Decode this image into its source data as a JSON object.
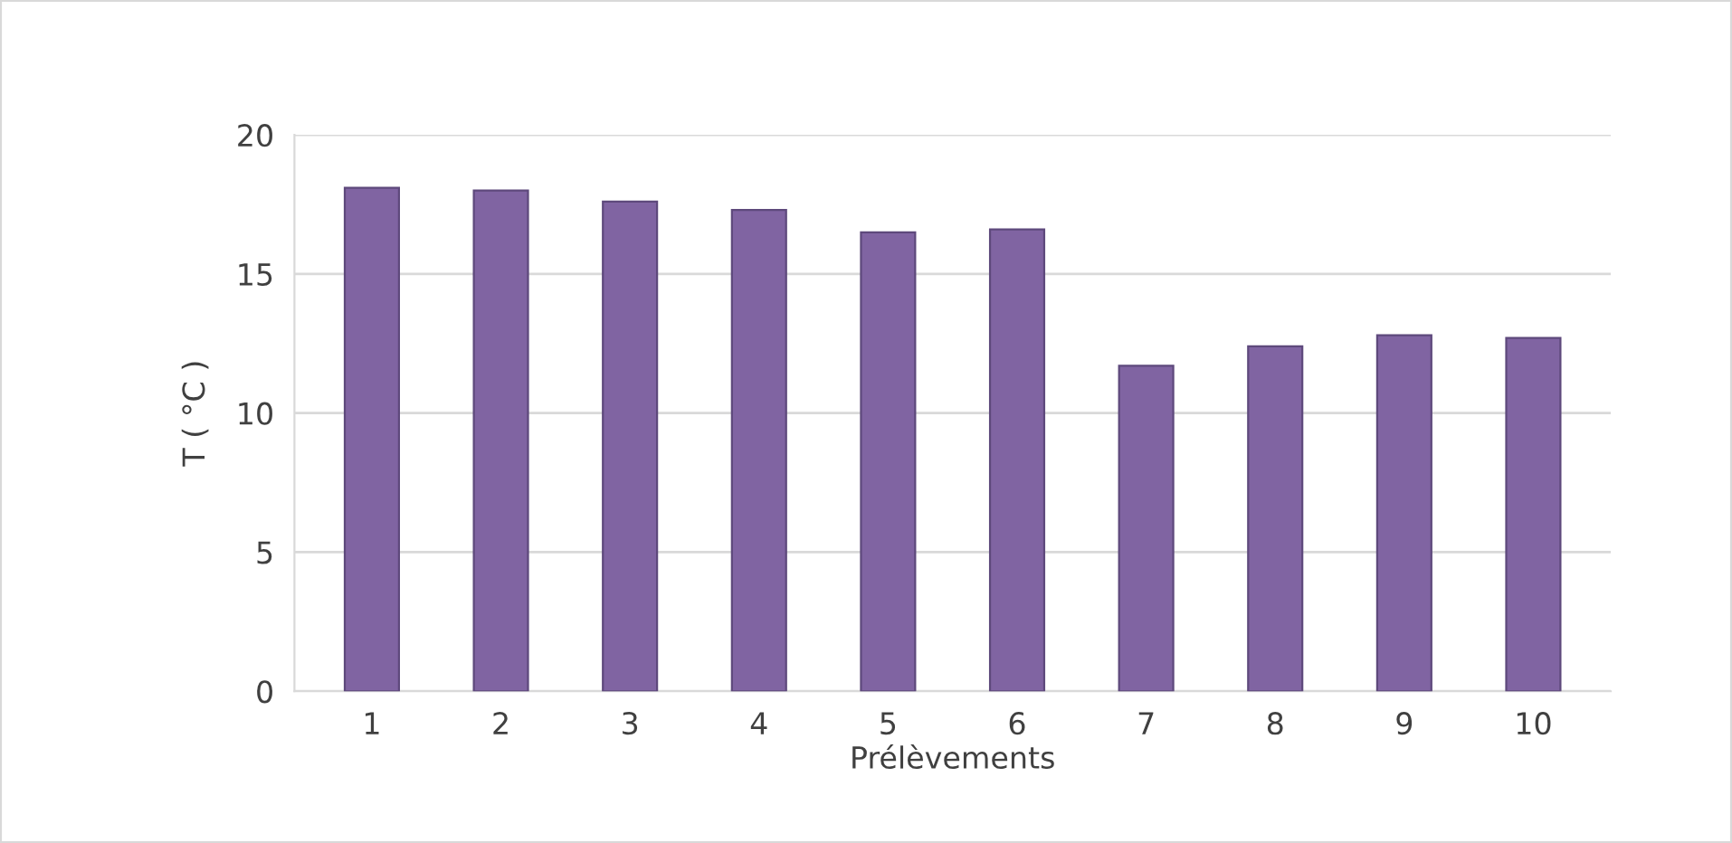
{
  "chart_data": {
    "type": "bar",
    "xlabel": "Prélèvements",
    "ylabel": "T ( °C )",
    "categories": [
      "1",
      "2",
      "3",
      "4",
      "5",
      "6",
      "7",
      "8",
      "9",
      "10"
    ],
    "values": [
      18.1,
      18.0,
      17.6,
      17.3,
      16.5,
      16.6,
      11.7,
      12.4,
      12.8,
      12.7
    ],
    "color": "#8064a2",
    "ylim": [
      0,
      20
    ],
    "yticks": [
      0,
      5,
      10,
      15,
      20
    ],
    "grid": "y"
  }
}
